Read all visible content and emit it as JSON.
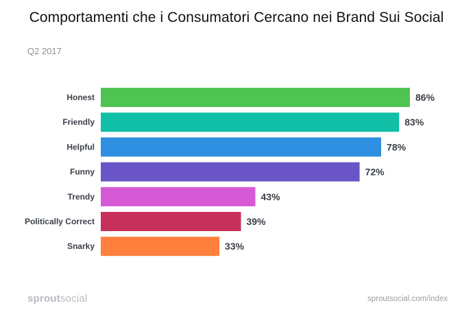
{
  "title": "Comportamenti che i Consumatori Cercano nei Brand Sui Social",
  "period": "Q2 2017",
  "footer": {
    "logo_bold": "sprout",
    "logo_light": "social",
    "url": "sproutsocial.com/index"
  },
  "chart_data": {
    "type": "bar",
    "orientation": "horizontal",
    "categories": [
      "Honest",
      "Friendly",
      "Helpful",
      "Funny",
      "Trendy",
      "Politically Correct",
      "Snarky"
    ],
    "values": [
      86,
      83,
      78,
      72,
      43,
      39,
      33
    ],
    "value_labels": [
      "86%",
      "83%",
      "78%",
      "72%",
      "43%",
      "39%",
      "33%"
    ],
    "colors": [
      "#4fc452",
      "#10bfa5",
      "#2f8fe0",
      "#6a55c8",
      "#d65ad6",
      "#c8305c",
      "#ff7f3c"
    ],
    "xlim": [
      0,
      100
    ],
    "grid": false
  }
}
